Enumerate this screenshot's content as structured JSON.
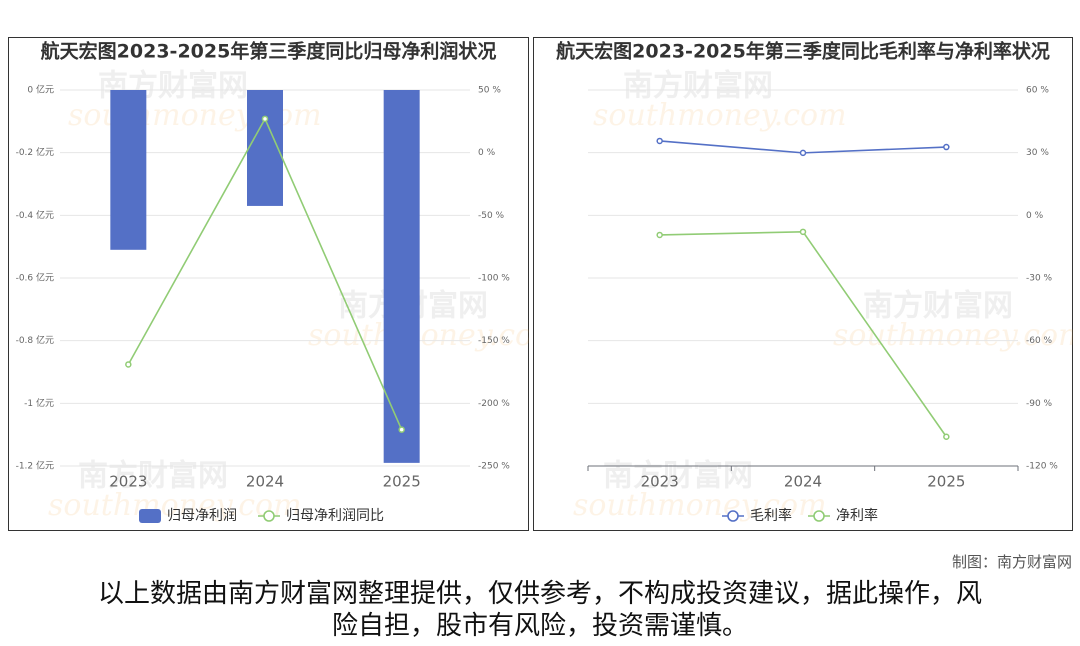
{
  "chart_data": [
    {
      "type": "combo",
      "title": "航天宏图2023-2025年第三季度同比归母净利润状况",
      "categories": [
        "2023",
        "2024",
        "2025"
      ],
      "ylim": [
        -1.2,
        0
      ],
      "yticks": [
        {
          "value": 0,
          "label": "0 亿元"
        },
        {
          "value": -0.2,
          "label": "-0.2 亿元"
        },
        {
          "value": -0.4,
          "label": "-0.4 亿元"
        },
        {
          "value": -0.6,
          "label": "-0.6 亿元"
        },
        {
          "value": -0.8,
          "label": "-0.8 亿元"
        },
        {
          "value": -1,
          "label": "-1 亿元"
        },
        {
          "value": -1.2,
          "label": "-1.2 亿元"
        }
      ],
      "y2lim": [
        -250,
        50
      ],
      "y2ticks": [
        {
          "value": 50,
          "label": "50 %"
        },
        {
          "value": 0,
          "label": "0 %"
        },
        {
          "value": -50,
          "label": "-50 %"
        },
        {
          "value": -100,
          "label": "-100 %"
        },
        {
          "value": -150,
          "label": "-150 %"
        },
        {
          "value": -200,
          "label": "-200 %"
        },
        {
          "value": -250,
          "label": "-250 %"
        }
      ],
      "grid": true,
      "series": [
        {
          "name": "归母净利润",
          "type": "bar",
          "color": "#5470c6",
          "values": [
            -0.51,
            -0.37,
            -1.19
          ]
        },
        {
          "name": "归母净利润同比",
          "type": "line",
          "axis": "y2",
          "color": "#91cc75",
          "values": [
            -169,
            27,
            -221
          ]
        }
      ]
    },
    {
      "type": "line",
      "title": "航天宏图2023-2025年第三季度同比毛利率与净利率状况",
      "categories": [
        "2023",
        "2024",
        "2025"
      ],
      "y2lim": [
        -120,
        60
      ],
      "y2ticks": [
        {
          "value": 60,
          "label": "60 %"
        },
        {
          "value": 30,
          "label": "30 %"
        },
        {
          "value": 0,
          "label": "0 %"
        },
        {
          "value": -30,
          "label": "-30 %"
        },
        {
          "value": -60,
          "label": "-60 %"
        },
        {
          "value": -90,
          "label": "-90 %"
        },
        {
          "value": -120,
          "label": "-120 %"
        }
      ],
      "grid": true,
      "series": [
        {
          "name": "毛利率",
          "type": "line",
          "axis": "y2",
          "color": "#5470c6",
          "values": [
            35.6,
            29.9,
            32.7
          ]
        },
        {
          "name": "净利率",
          "type": "line",
          "axis": "y2",
          "color": "#91cc75",
          "values": [
            -9.4,
            -7.9,
            -106
          ]
        }
      ]
    }
  ],
  "watermark": {
    "cn": "南方财富网",
    "en": "southmoney.com"
  },
  "credit": "制图：南方财富网",
  "disclaimer": "以上数据由南方财富网整理提供，仅供参考，不构成投资建议，据此操作，风险自担，股市有风险，投资需谨慎。"
}
